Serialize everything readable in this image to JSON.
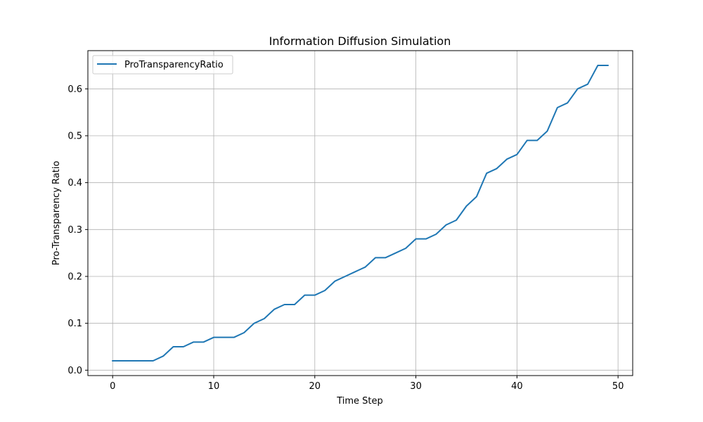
{
  "chart_data": {
    "type": "line",
    "title": "Information Diffusion Simulation",
    "xlabel": "Time Step",
    "ylabel": "Pro-Transparency Ratio",
    "xlim": [
      -2.45,
      51.45
    ],
    "ylim": [
      -0.0115,
      0.6815
    ],
    "xticks": [
      0,
      10,
      20,
      30,
      40,
      50
    ],
    "yticks": [
      0.0,
      0.1,
      0.2,
      0.3,
      0.4,
      0.5,
      0.6
    ],
    "ytick_labels": [
      "0.0",
      "0.1",
      "0.2",
      "0.3",
      "0.4",
      "0.5",
      "0.6"
    ],
    "grid": true,
    "legend_position": "top-left",
    "series": [
      {
        "name": "ProTransparencyRatio",
        "color": "#1f77b4",
        "x": [
          0,
          1,
          2,
          3,
          4,
          5,
          6,
          7,
          8,
          9,
          10,
          11,
          12,
          13,
          14,
          15,
          16,
          17,
          18,
          19,
          20,
          21,
          22,
          23,
          24,
          25,
          26,
          27,
          28,
          29,
          30,
          31,
          32,
          33,
          34,
          35,
          36,
          37,
          38,
          39,
          40,
          41,
          42,
          43,
          44,
          45,
          46,
          47,
          48,
          49
        ],
        "y": [
          0.02,
          0.02,
          0.02,
          0.02,
          0.02,
          0.03,
          0.05,
          0.05,
          0.06,
          0.06,
          0.07,
          0.07,
          0.07,
          0.08,
          0.1,
          0.11,
          0.13,
          0.14,
          0.14,
          0.16,
          0.16,
          0.17,
          0.19,
          0.2,
          0.21,
          0.22,
          0.24,
          0.24,
          0.25,
          0.26,
          0.28,
          0.28,
          0.29,
          0.31,
          0.32,
          0.35,
          0.37,
          0.42,
          0.43,
          0.45,
          0.46,
          0.49,
          0.49,
          0.51,
          0.56,
          0.57,
          0.6,
          0.61,
          0.65,
          0.65
        ]
      }
    ]
  }
}
